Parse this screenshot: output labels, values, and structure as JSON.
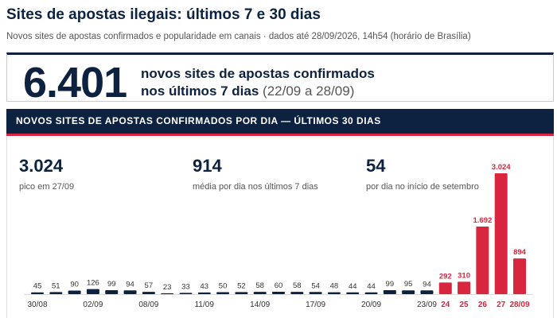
{
  "header": {
    "title": "Sites de apostas ilegais: últimos 7 e 30 dias",
    "subtitle": "Novos sites de apostas confirmados e popularidade em canais · dados até 28/09/2026, 14h54 (horário de Brasília)"
  },
  "kpi": {
    "number": "6.401",
    "line1": "novos sites de apostas confirmados",
    "line2": "nos últimos 7 dias",
    "range": "(22/09 a 28/09)"
  },
  "banner": "NOVOS SITES DE APOSTAS CONFIRMADOS POR DIA — ÚLTIMOS 30 DIAS",
  "stats": [
    {
      "value": "3.024",
      "label": "pico em 27/09"
    },
    {
      "value": "914",
      "label": "média por dia nos últimos 7 dias"
    },
    {
      "value": "54",
      "label": "por dia no início de setembro"
    }
  ],
  "chart_data": {
    "type": "bar",
    "categories": [
      "30/08",
      null,
      null,
      "02/09",
      null,
      null,
      "08/09",
      null,
      null,
      "11/09",
      null,
      null,
      "14/09",
      null,
      null,
      "17/09",
      null,
      null,
      "20/09",
      null,
      null,
      "23/09",
      "24",
      "25",
      "26",
      "27",
      "28/09"
    ],
    "values": [
      45,
      51,
      90,
      126,
      99,
      94,
      57,
      23,
      33,
      43,
      50,
      52,
      58,
      60,
      58,
      54,
      48,
      44,
      44,
      99,
      95,
      94,
      292,
      310,
      1692,
      3024,
      894
    ],
    "value_labels": [
      "45",
      "51",
      "90",
      "126",
      "99",
      "94",
      "57",
      "23",
      "33",
      "43",
      "50",
      "52",
      "58",
      "60",
      "58",
      "54",
      "48",
      "44",
      "44",
      "99",
      "95",
      "94",
      "292",
      "310",
      "1.692",
      "3.024",
      "894"
    ],
    "colors": [
      "#0d2240",
      "#0d2240",
      "#0d2240",
      "#0d2240",
      "#0d2240",
      "#0d2240",
      "#0d2240",
      "#0d2240",
      "#0d2240",
      "#0d2240",
      "#0d2240",
      "#0d2240",
      "#0d2240",
      "#0d2240",
      "#0d2240",
      "#0d2240",
      "#0d2240",
      "#0d2240",
      "#0d2240",
      "#0d2240",
      "#0d2240",
      "#0d2240",
      "#d7263d",
      "#d7263d",
      "#d7263d",
      "#d7263d",
      "#d7263d"
    ]
  }
}
